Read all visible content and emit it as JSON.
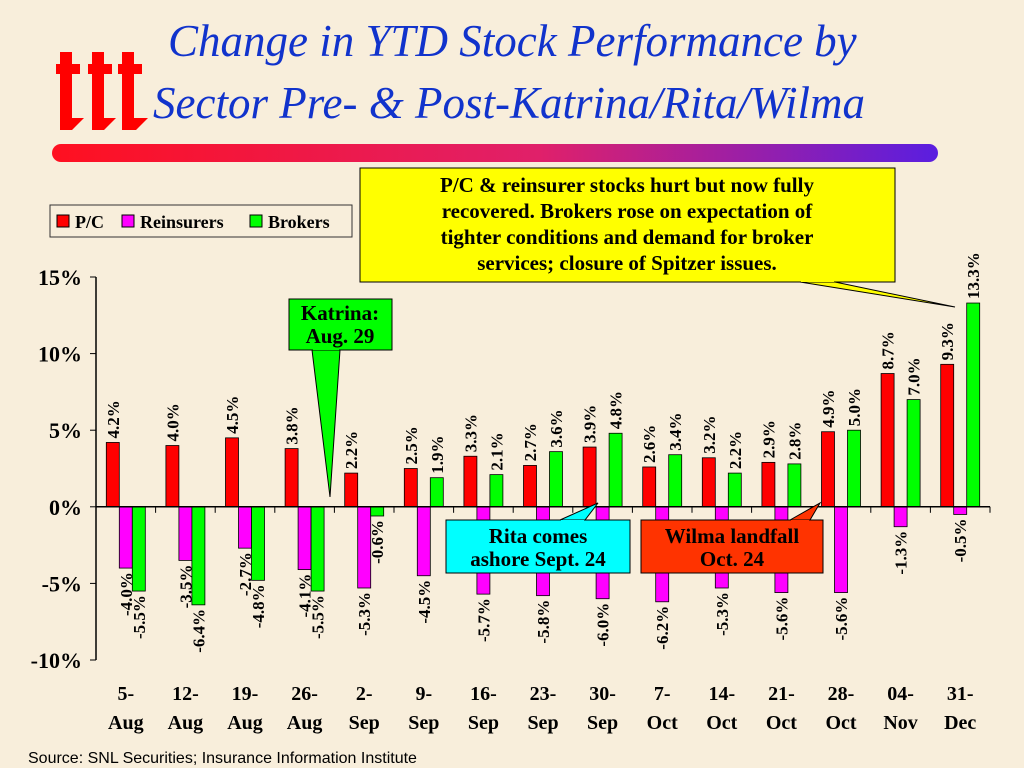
{
  "title_lines": [
    "Change in YTD Stock Performance by",
    "Sector Pre- & Post-Katrina/Rita/Wilma"
  ],
  "logo_text": "iii",
  "source": "Source: SNL Securities; Insurance Information Institute",
  "colors": {
    "pc": "#ff0000",
    "reinsurers": "#ff00ff",
    "brokers": "#00ff00",
    "title": "#1133cc",
    "background": "#f8eedb"
  },
  "annotations": {
    "main": [
      "P/C & reinsurer stocks hurt but now fully",
      "recovered. Brokers rose on expectation of",
      "tighter conditions and demand for broker",
      "services; closure of Spitzer issues."
    ],
    "katrina": [
      "Katrina:",
      "Aug. 29"
    ],
    "rita": [
      "Rita comes",
      "ashore Sept. 24"
    ],
    "wilma": [
      "Wilma landfall",
      "Oct. 24"
    ]
  },
  "chart_data": {
    "type": "bar",
    "categories": [
      [
        "5-",
        "Aug"
      ],
      [
        "12-",
        "Aug"
      ],
      [
        "19-",
        "Aug"
      ],
      [
        "26-",
        "Aug"
      ],
      [
        "2-",
        "Sep"
      ],
      [
        "9-",
        "Sep"
      ],
      [
        "16-",
        "Sep"
      ],
      [
        "23-",
        "Sep"
      ],
      [
        "30-",
        "Sep"
      ],
      [
        "7-",
        "Oct"
      ],
      [
        "14-",
        "Oct"
      ],
      [
        "21-",
        "Oct"
      ],
      [
        "28-",
        "Oct"
      ],
      [
        "04-",
        "Nov"
      ],
      [
        "31-",
        "Dec"
      ]
    ],
    "series": [
      {
        "name": "P/C",
        "values": [
          4.2,
          4.0,
          4.5,
          3.8,
          2.2,
          2.5,
          3.3,
          2.7,
          3.9,
          2.6,
          3.2,
          2.9,
          4.9,
          8.7,
          9.3
        ]
      },
      {
        "name": "Reinsurers",
        "values": [
          -4.0,
          -3.5,
          -2.7,
          -4.1,
          -5.3,
          -4.5,
          -5.7,
          -5.8,
          -6.0,
          -6.2,
          -5.3,
          -5.6,
          -5.6,
          -1.3,
          -0.5
        ]
      },
      {
        "name": "Brokers",
        "values": [
          -5.5,
          -6.4,
          -4.8,
          -5.5,
          -0.6,
          1.9,
          2.1,
          3.6,
          4.8,
          3.4,
          2.2,
          2.8,
          5.0,
          7.0,
          13.3
        ]
      }
    ],
    "ylim": [
      -10,
      15
    ],
    "yticks": [
      "-10%",
      "-5%",
      "0%",
      "5%",
      "10%",
      "15%"
    ],
    "ytick_values": [
      -10,
      -5,
      0,
      5,
      10,
      15
    ],
    "value_format": "%.1f%",
    "legend_placement": "top-left",
    "grid": false
  }
}
